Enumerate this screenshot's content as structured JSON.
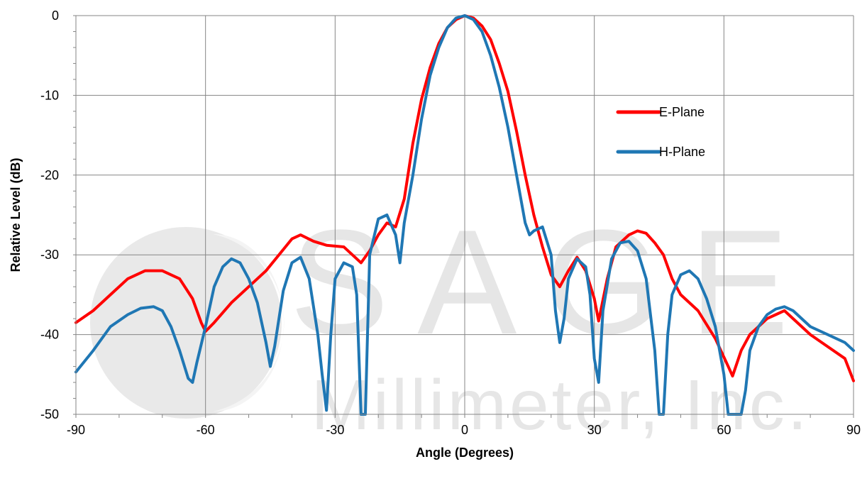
{
  "chart_data": {
    "type": "line",
    "title": "",
    "xlabel": "Angle (Degrees)",
    "ylabel": "Relative Level (dB)",
    "xlim": [
      -90,
      90
    ],
    "ylim": [
      -50,
      0
    ],
    "xticks": [
      -90,
      -60,
      -30,
      0,
      30,
      60,
      90
    ],
    "yticks": [
      0,
      -10,
      -20,
      -30,
      -40,
      -50
    ],
    "grid": true,
    "legend_position": "right",
    "watermark": {
      "text_line1": "SAGE",
      "text_line2": "Millimeter, Inc."
    },
    "series": [
      {
        "name": "E-Plane",
        "color": "#ff0000",
        "x": [
          -90,
          -86,
          -82,
          -78,
          -74,
          -70,
          -66,
          -63,
          -61,
          -60,
          -58,
          -54,
          -50,
          -46,
          -43,
          -40,
          -38,
          -35,
          -32,
          -28,
          -26,
          -24,
          -22,
          -20,
          -18,
          -16,
          -14,
          -12,
          -10,
          -8,
          -6,
          -4,
          -2,
          0,
          2,
          4,
          6,
          8,
          10,
          12,
          14,
          16,
          18,
          20,
          22,
          24,
          26,
          28,
          30,
          31,
          33,
          35,
          38,
          40,
          42,
          44,
          46,
          48,
          50,
          54,
          58,
          61,
          62,
          64,
          66,
          70,
          72,
          74,
          76,
          80,
          84,
          88,
          90
        ],
        "y": [
          -38.5,
          -37,
          -35,
          -33,
          -32,
          -32,
          -33,
          -35.5,
          -38.5,
          -39.6,
          -38.5,
          -36,
          -34,
          -32,
          -30,
          -28,
          -27.5,
          -28.3,
          -28.8,
          -29,
          -30,
          -31,
          -29.5,
          -27.5,
          -26,
          -26.5,
          -23,
          -16,
          -10.5,
          -6.5,
          -3.5,
          -1.5,
          -0.5,
          0,
          -0.3,
          -1.3,
          -3,
          -6,
          -9.5,
          -14.5,
          -20,
          -25,
          -29,
          -32.5,
          -34,
          -32,
          -30.3,
          -32,
          -35.5,
          -38.3,
          -33,
          -29,
          -27.5,
          -27,
          -27.3,
          -28.5,
          -30,
          -33,
          -35,
          -37,
          -40.5,
          -44,
          -45.2,
          -42,
          -40,
          -38,
          -37.5,
          -37,
          -38,
          -40,
          -41.5,
          -43,
          -45.8
        ]
      },
      {
        "name": "H-Plane",
        "color": "#1f77b4",
        "x": [
          -90,
          -86,
          -82,
          -78,
          -75,
          -72,
          -70,
          -68,
          -66,
          -64,
          -63,
          -62,
          -60,
          -58,
          -56,
          -54,
          -52,
          -50,
          -48,
          -46,
          -45,
          -44,
          -42,
          -40,
          -38,
          -36,
          -34,
          -33,
          -32,
          -31,
          -30,
          -28,
          -26,
          -25,
          -24,
          -23,
          -22,
          -20,
          -18,
          -16,
          -15,
          -14,
          -12,
          -10,
          -8,
          -6,
          -4,
          -2,
          0,
          2,
          4,
          6,
          8,
          10,
          12,
          14,
          15,
          16,
          18,
          20,
          21,
          22,
          23,
          24,
          26,
          28,
          29,
          30,
          31,
          32,
          34,
          36,
          38,
          40,
          42,
          44,
          45,
          46,
          47,
          48,
          50,
          52,
          54,
          56,
          58,
          60,
          61,
          62,
          63,
          64,
          65,
          66,
          68,
          70,
          72,
          74,
          76,
          78,
          80,
          84,
          88,
          90
        ],
        "y": [
          -44.7,
          -42,
          -39,
          -37.5,
          -36.7,
          -36.5,
          -37,
          -39,
          -42,
          -45.5,
          -46,
          -43.5,
          -39,
          -34,
          -31.5,
          -30.5,
          -31,
          -33,
          -36,
          -41,
          -44,
          -41.5,
          -34.5,
          -31,
          -30.3,
          -33,
          -40,
          -45,
          -49.5,
          -40,
          -33,
          -31,
          -31.5,
          -35,
          -50,
          -50,
          -30,
          -25.5,
          -25,
          -27.5,
          -31,
          -26,
          -20,
          -13,
          -7.5,
          -4,
          -1.5,
          -0.3,
          0,
          -0.5,
          -2,
          -5,
          -9,
          -14,
          -20,
          -26,
          -27.5,
          -27,
          -26.5,
          -30,
          -37,
          -41,
          -38,
          -33,
          -30.5,
          -31.5,
          -35,
          -43,
          -46,
          -37,
          -30.5,
          -28.5,
          -28.3,
          -29.5,
          -33,
          -42,
          -50,
          -50,
          -40,
          -35,
          -32.5,
          -32,
          -33,
          -35.5,
          -39,
          -45,
          -50,
          -50,
          -50,
          -50,
          -47,
          -42,
          -39,
          -37.5,
          -36.8,
          -36.5,
          -37,
          -38,
          -39,
          -40,
          -41,
          -42
        ]
      }
    ]
  }
}
